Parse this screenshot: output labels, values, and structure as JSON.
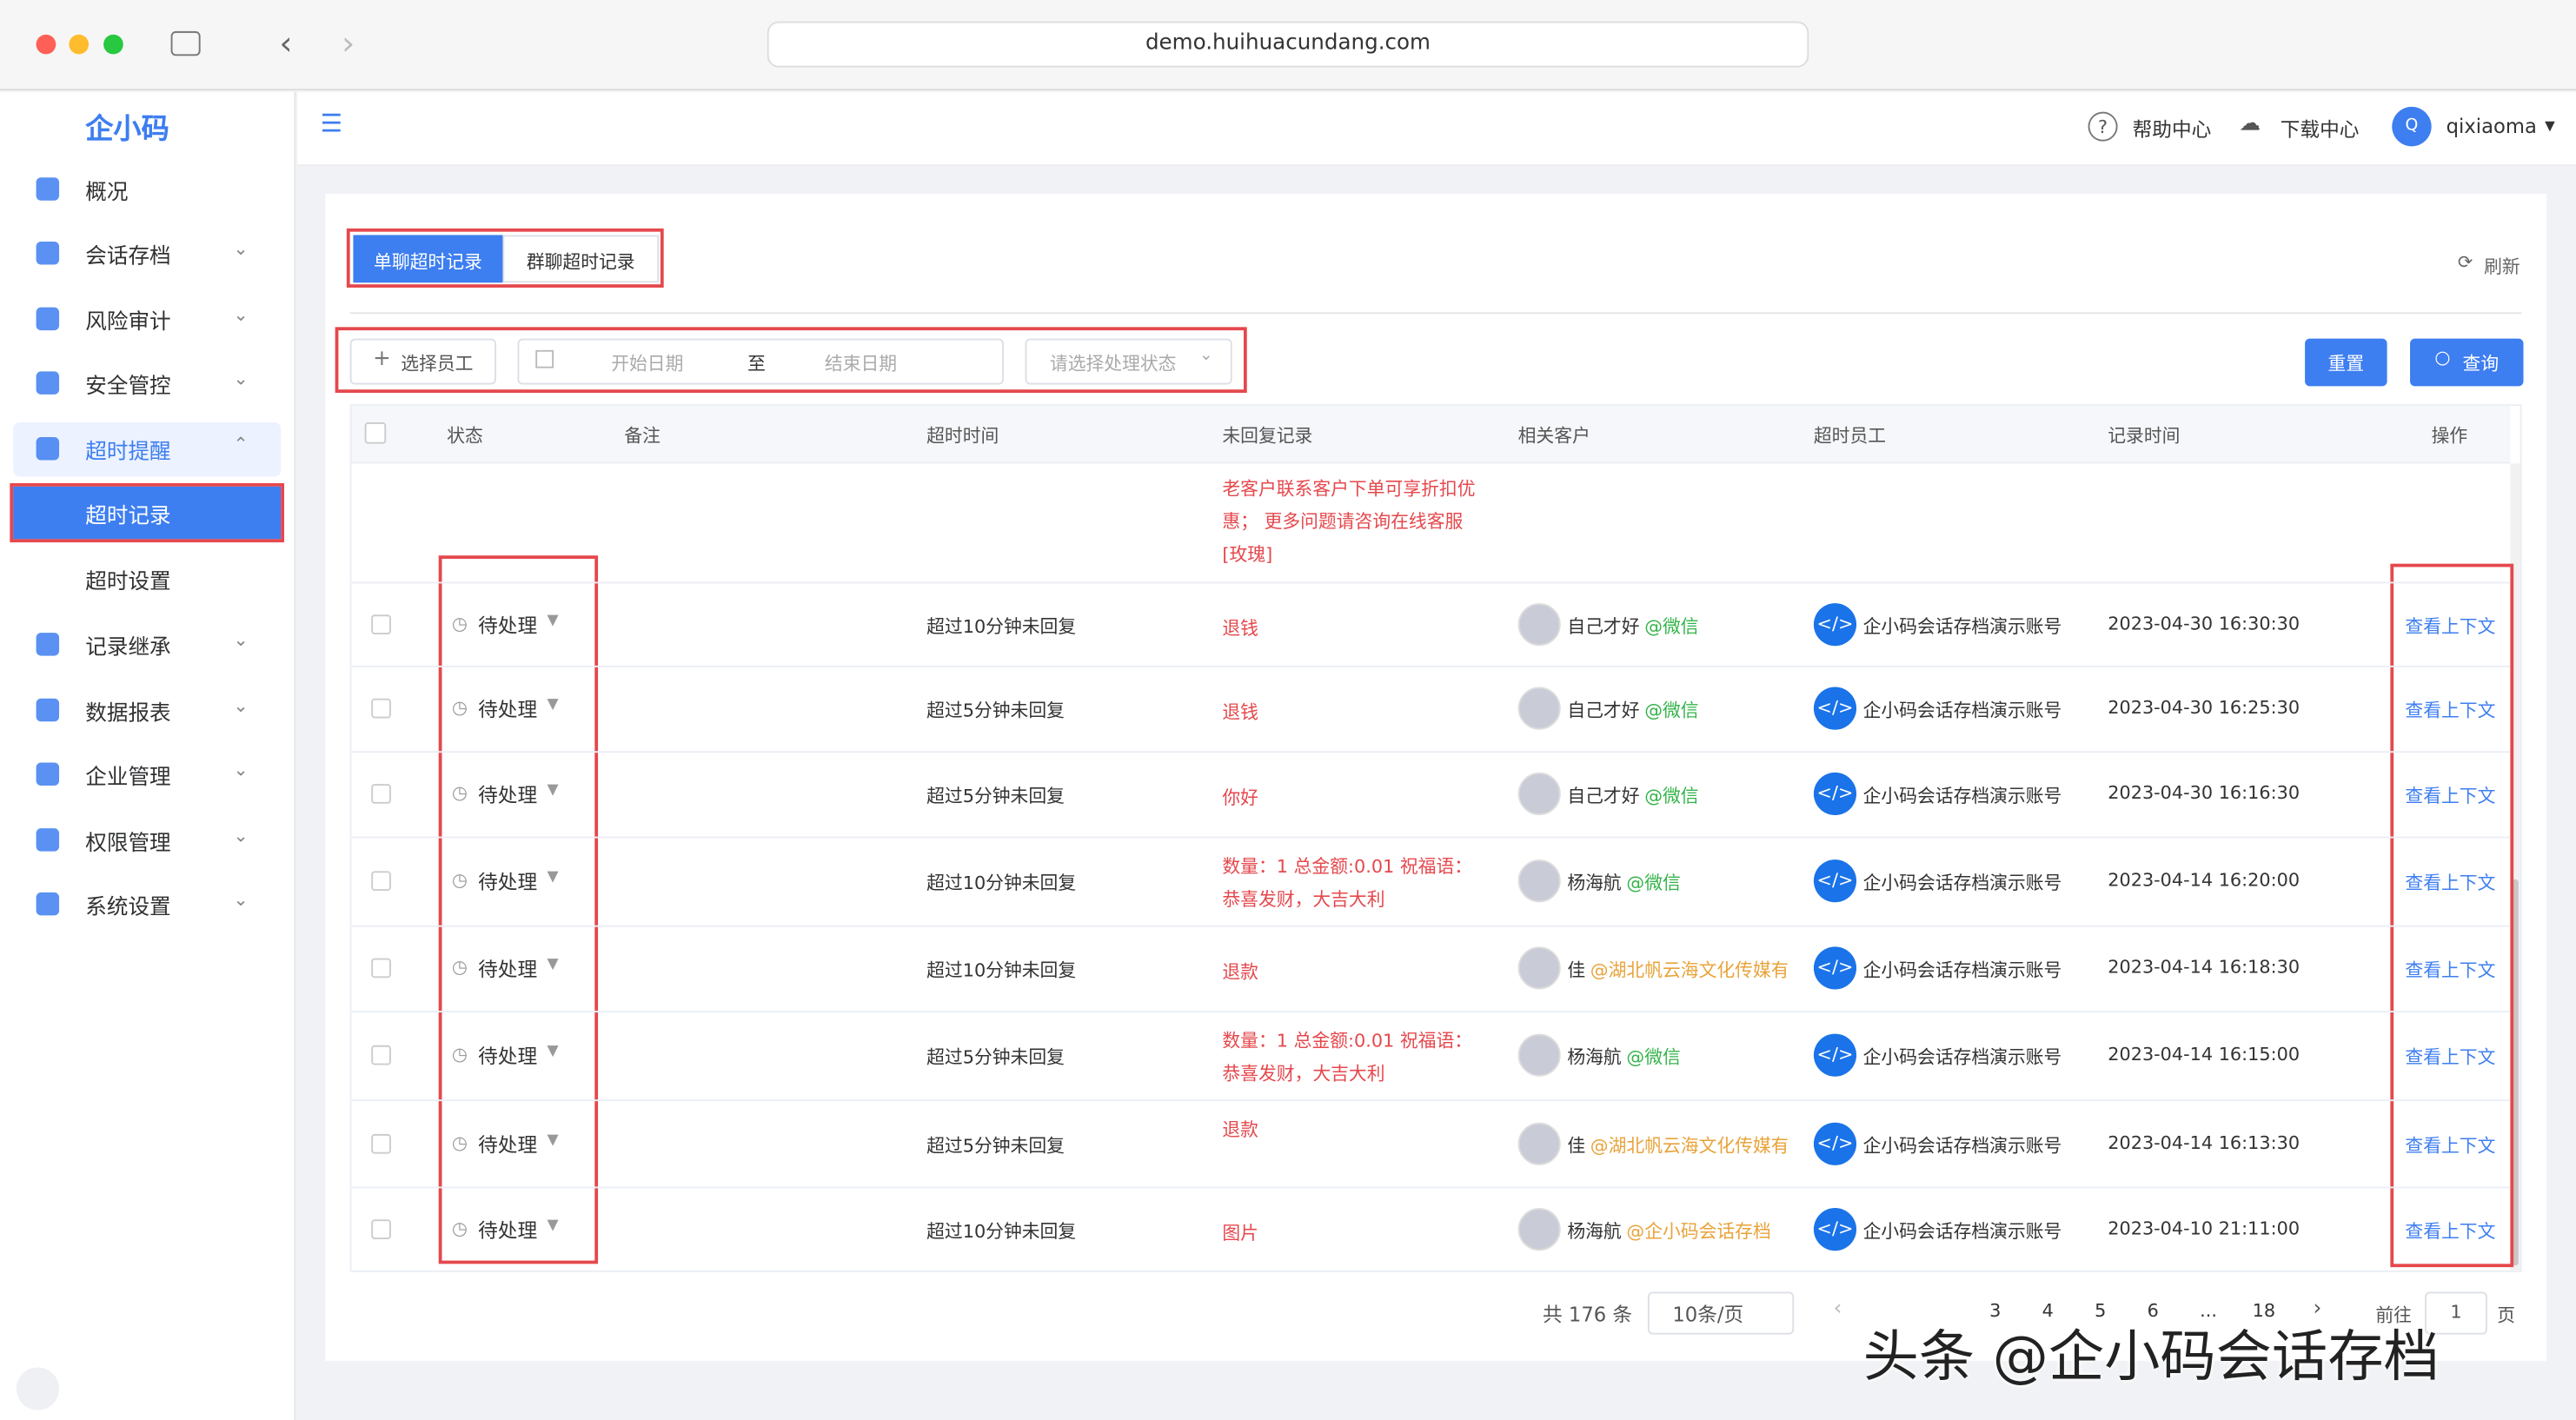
{
  "browser": {
    "url": "demo.huihuacundang.com"
  },
  "sidebar": {
    "logo": "企小码",
    "menu": [
      "概况",
      "会话存档",
      "风险审计",
      "安全管控",
      "超时提醒"
    ],
    "submenu": [
      "超时记录",
      "超时设置"
    ],
    "menu_after": [
      "记录继承",
      "数据报表",
      "企业管理",
      "权限管理",
      "系统设置"
    ]
  },
  "header": {
    "help": "帮助中心",
    "download": "下载中心",
    "avatar": "Q",
    "user": "qixiaoma"
  },
  "tabs": [
    "单聊超时记录",
    "群聊超时记录"
  ],
  "refresh": "刷新",
  "filters": {
    "employee": "选择员工",
    "start": "开始日期",
    "to": "至",
    "end": "结束日期",
    "status": "请选择处理状态",
    "reset": "重置",
    "query": "查询"
  },
  "table": {
    "columns": [
      "状态",
      "备注",
      "超时时间",
      "未回复记录",
      "相关客户",
      "超时员工",
      "记录时间",
      "操作"
    ],
    "partial_message": "老客户联系客户下单可享折扣优惠； 更多问题请咨询在线客服[玫瑰]",
    "rows": [
      {
        "status": "待处理",
        "timeout": "超过10分钟未回复",
        "message": "退钱",
        "customer": "自己才好",
        "source": "@微信",
        "employee": "企小码会话存档演示账号",
        "time": "2023-04-30 16:30:30",
        "action": "查看上下文"
      },
      {
        "status": "待处理",
        "timeout": "超过5分钟未回复",
        "message": "退钱",
        "customer": "自己才好",
        "source": "@微信",
        "employee": "企小码会话存档演示账号",
        "time": "2023-04-30 16:25:30",
        "action": "查看上下文"
      },
      {
        "status": "待处理",
        "timeout": "超过5分钟未回复",
        "message": "你好",
        "customer": "自己才好",
        "source": "@微信",
        "employee": "企小码会话存档演示账号",
        "time": "2023-04-30 16:16:30",
        "action": "查看上下文"
      },
      {
        "status": "待处理",
        "timeout": "超过10分钟未回复",
        "message": "数量：1 总金额:0.01 祝福语：恭喜发财，大吉大利",
        "customer": "杨海航",
        "source": "@微信",
        "employee": "企小码会话存档演示账号",
        "time": "2023-04-14 16:20:00",
        "action": "查看上下文"
      },
      {
        "status": "待处理",
        "timeout": "超过10分钟未回复",
        "message": "退款",
        "customer": "佳",
        "source": "@湖北帆云海文化传媒有",
        "employee": "企小码会话存档演示账号",
        "time": "2023-04-14 16:18:30",
        "action": "查看上下文"
      },
      {
        "status": "待处理",
        "timeout": "超过5分钟未回复",
        "message": "数量：1 总金额:0.01 祝福语：恭喜发财，大吉大利",
        "customer": "杨海航",
        "source": "@微信",
        "employee": "企小码会话存档演示账号",
        "time": "2023-04-14 16:15:00",
        "action": "查看上下文"
      },
      {
        "status": "待处理",
        "timeout": "超过5分钟未回复",
        "message": "退款",
        "customer": "佳",
        "source": "@湖北帆云海文化传媒有",
        "employee": "企小码会话存档演示账号",
        "time": "2023-04-14 16:13:30",
        "action": "查看上下文"
      },
      {
        "status": "待处理",
        "timeout": "超过10分钟未回复",
        "message": "图片",
        "customer": "杨海航",
        "source": "@企小码会话存档",
        "employee": "企小码会话存档演示账号",
        "time": "2023-04-10 21:11:00",
        "action": "查看上下文"
      }
    ]
  },
  "pagination": {
    "total": "共 176 条",
    "size": "10条/页",
    "pages": [
      "3",
      "4",
      "5",
      "6",
      "...",
      "18"
    ],
    "goto": "前往",
    "page": "1",
    "unit": "页"
  },
  "watermark": "头条 @企小码会话存档"
}
